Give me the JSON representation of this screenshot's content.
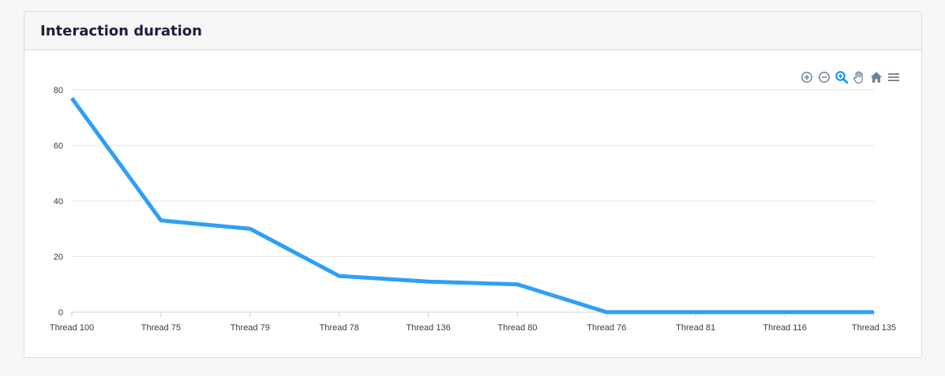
{
  "card": {
    "title": "Interaction duration"
  },
  "toolbar": {
    "tools": [
      {
        "name": "zoom-in-icon",
        "color": "#6e8192"
      },
      {
        "name": "zoom-out-icon",
        "color": "#6e8192"
      },
      {
        "name": "selection-zoom-icon",
        "color": "#008ffb"
      },
      {
        "name": "pan-hand-icon",
        "color": "#6e8192"
      },
      {
        "name": "reset-home-icon",
        "color": "#6e8192"
      },
      {
        "name": "menu-icon",
        "color": "#6e8192"
      }
    ]
  },
  "chart_data": {
    "type": "line",
    "title": "Interaction duration",
    "categories": [
      "Thread 100",
      "Thread 75",
      "Thread 79",
      "Thread 78",
      "Thread 136",
      "Thread 80",
      "Thread 76",
      "Thread 81",
      "Thread 116",
      "Thread 135"
    ],
    "series": [
      {
        "values": [
          77,
          33,
          30,
          13,
          11,
          10,
          0,
          0,
          0,
          0
        ]
      }
    ],
    "ylim": [
      0,
      80
    ],
    "yticks": [
      0,
      20,
      40,
      60,
      80
    ],
    "grid": true,
    "line_color": "#2e9ff7"
  }
}
